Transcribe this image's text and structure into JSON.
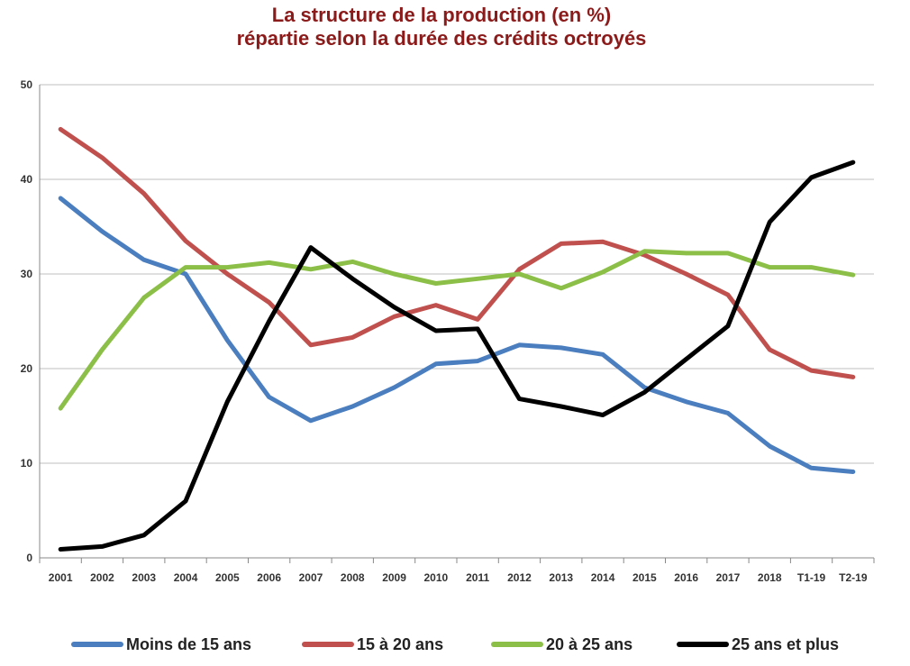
{
  "title_line1": "La structure de la production (en %)",
  "title_line2": "répartie selon la durée des crédits octroyés",
  "chart_data": {
    "type": "line",
    "title": "La structure de la production (en %) répartie selon la durée des crédits octroyés",
    "xlabel": "",
    "ylabel": "",
    "ylim": [
      0,
      50
    ],
    "yticks": [
      "0",
      "10",
      "20",
      "30",
      "40",
      "50"
    ],
    "grid": true,
    "legend_position": "bottom",
    "categories": [
      "2001",
      "2002",
      "2003",
      "2004",
      "2005",
      "2006",
      "2007",
      "2008",
      "2009",
      "2010",
      "2011",
      "2012",
      "2013",
      "2014",
      "2015",
      "2016",
      "2017",
      "2018",
      "T1-19",
      "T2-19"
    ],
    "series": [
      {
        "name": "Moins de 15 ans",
        "color": "#4a7ebf",
        "values": [
          38.0,
          34.5,
          31.5,
          30.0,
          23.0,
          17.0,
          14.5,
          16.0,
          18.0,
          20.5,
          20.8,
          22.5,
          22.2,
          21.5,
          18.0,
          16.5,
          15.3,
          11.8,
          9.5,
          9.1
        ]
      },
      {
        "name": "15 à 20 ans",
        "color": "#c0504d",
        "values": [
          45.3,
          42.3,
          38.5,
          33.5,
          30.0,
          27.0,
          22.5,
          23.3,
          25.5,
          26.7,
          25.2,
          30.5,
          33.2,
          33.4,
          32.0,
          30.0,
          27.8,
          22.0,
          19.8,
          19.1
        ]
      },
      {
        "name": "20 à 25 ans",
        "color": "#8bbf47",
        "values": [
          15.8,
          22.0,
          27.5,
          30.7,
          30.7,
          31.2,
          30.5,
          31.3,
          30.0,
          29.0,
          29.5,
          30.0,
          28.5,
          30.2,
          32.4,
          32.2,
          32.2,
          30.7,
          30.7,
          29.9
        ]
      },
      {
        "name": "25 ans et plus",
        "color": "#000000",
        "values": [
          0.9,
          1.2,
          2.4,
          6.0,
          16.5,
          25.0,
          32.8,
          29.5,
          26.5,
          24.0,
          24.2,
          16.8,
          16.0,
          15.1,
          17.5,
          21.0,
          24.5,
          35.5,
          40.2,
          41.8
        ]
      }
    ]
  }
}
